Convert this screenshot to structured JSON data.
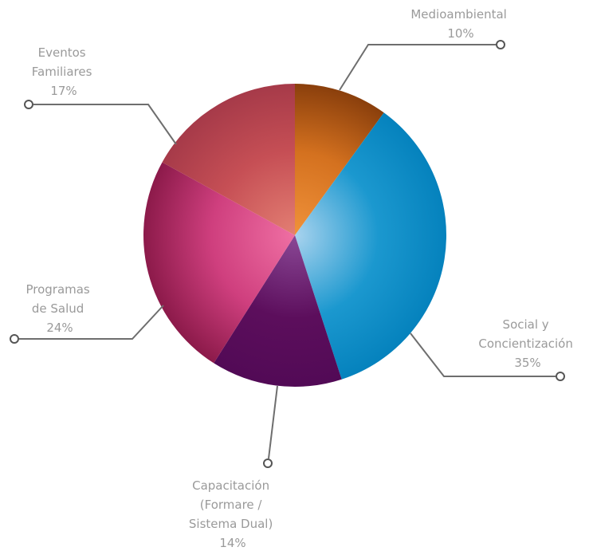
{
  "chart_data": {
    "type": "pie",
    "title": "",
    "legend": "none",
    "slices": [
      {
        "name": "Medioambiental",
        "label_lines": [
          "Medioambiental"
        ],
        "pct_label": "10%",
        "value": 10,
        "color": "#d4711f",
        "color_light": "#f0923a",
        "color_dark": "#8a3f0c"
      },
      {
        "name": "Social y Concientización",
        "label_lines": [
          "Social y",
          "Concientización"
        ],
        "pct_label": "35%",
        "value": 35,
        "color": "#1b98cf",
        "color_light": "#a9d3ee",
        "color_dark": "#0582bd"
      },
      {
        "name": "Capacitación (Formare / Sistema Dual)",
        "label_lines": [
          "Capacitación",
          "(Formare /",
          "Sistema Dual)"
        ],
        "pct_label": "14%",
        "value": 14,
        "color": "#5c0e5c",
        "color_light": "#8a4896",
        "color_dark": "#520a56"
      },
      {
        "name": "Programas de Salud",
        "label_lines": [
          "Programas",
          "de Salud"
        ],
        "pct_label": "24%",
        "value": 24,
        "color": "#cf3f7e",
        "color_light": "#ef6fa3",
        "color_dark": "#8c1a4a"
      },
      {
        "name": "Eventos Familiares",
        "label_lines": [
          "Eventos",
          "Familiares"
        ],
        "pct_label": "17%",
        "value": 17,
        "color": "#c64f55",
        "color_light": "#e37f73",
        "color_dark": "#a63a49"
      }
    ]
  }
}
